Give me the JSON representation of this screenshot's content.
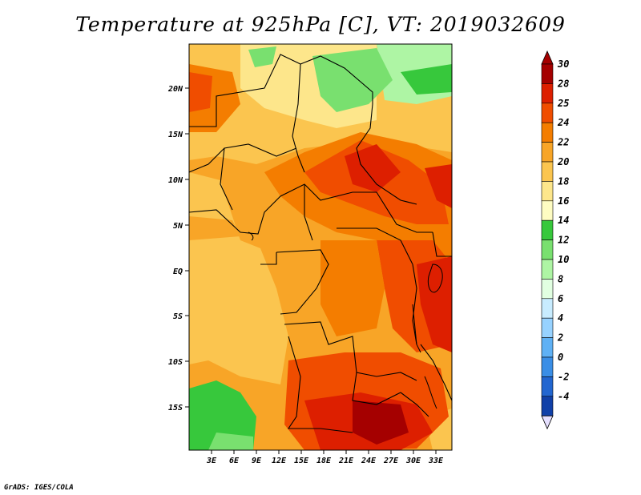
{
  "title": "Temperature at 925hPa [C], VT: 2019032609",
  "credit": "GrADS: IGES/COLA",
  "map": {
    "lon_ticks": [
      "3E",
      "6E",
      "9E",
      "12E",
      "15E",
      "18E",
      "21E",
      "24E",
      "27E",
      "30E",
      "33E"
    ],
    "lat_ticks": [
      "20N",
      "15N",
      "10N",
      "5N",
      "EQ",
      "5S",
      "10S",
      "15S"
    ]
  },
  "colorbar": {
    "labels": [
      "30",
      "28",
      "25",
      "24",
      "22",
      "20",
      "18",
      "16",
      "14",
      "12",
      "10",
      "8",
      "6",
      "4",
      "2",
      "0",
      "-2",
      "-4"
    ],
    "colors": [
      "#a50000",
      "#dd1f00",
      "#f04d00",
      "#f47d00",
      "#f8a527",
      "#fbc54f",
      "#fde68b",
      "#fefcc2",
      "#37c83c",
      "#79e06f",
      "#aef5a4",
      "#e1ffe1",
      "#c8ecff",
      "#97d2ff",
      "#5fb1f5",
      "#3a8ee6",
      "#2266d0",
      "#1040a8",
      "#0a1e78"
    ]
  }
}
